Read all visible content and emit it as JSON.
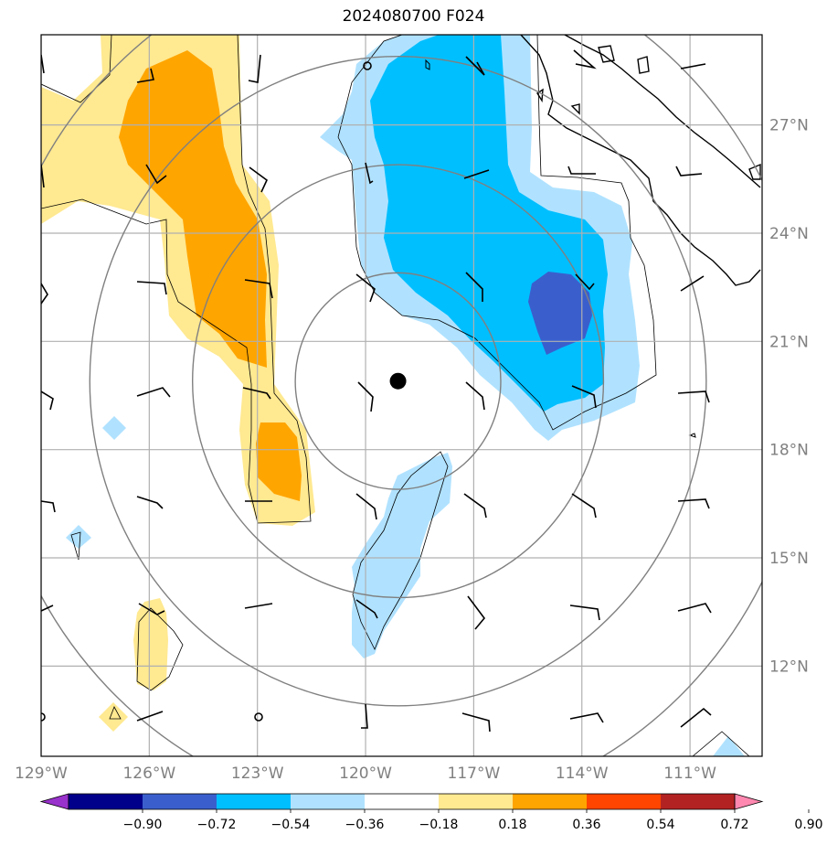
{
  "title": "2024080700 F024",
  "map": {
    "lon_range": [
      -129,
      -109
    ],
    "lat_range": [
      9.5,
      29.5
    ],
    "storm_center": {
      "lon": -119.1,
      "lat": 19.9
    },
    "range_rings_deg": [
      3,
      6,
      9,
      12
    ],
    "lon_ticks": [
      {
        "lon": -129,
        "label": "129°W"
      },
      {
        "lon": -126,
        "label": "126°W"
      },
      {
        "lon": -123,
        "label": "123°W"
      },
      {
        "lon": -120,
        "label": "120°W"
      },
      {
        "lon": -117,
        "label": "117°W"
      },
      {
        "lon": -114,
        "label": "114°W"
      },
      {
        "lon": -111,
        "label": "111°W"
      }
    ],
    "lat_ticks": [
      {
        "lat": 12,
        "label": "12°N"
      },
      {
        "lat": 15,
        "label": "15°N"
      },
      {
        "lat": 18,
        "label": "18°N"
      },
      {
        "lat": 21,
        "label": "21°N"
      },
      {
        "lat": 24,
        "label": "24°N"
      },
      {
        "lat": 27,
        "label": "27°N"
      }
    ]
  },
  "colorbar": {
    "levels": [
      "−0.90",
      "−0.72",
      "−0.54",
      "−0.36",
      "−0.18",
      "0.18",
      "0.36",
      "0.54",
      "0.72",
      "0.90"
    ],
    "colors": [
      "#9932cc",
      "#00008b",
      "#3a5fcd",
      "#00bfff",
      "#b0e2ff",
      "#ffffff",
      "#ffe991",
      "#ffa500",
      "#ff4500",
      "#b22222",
      "#ff88b0"
    ]
  },
  "fill_colors": {
    "light_yellow": "#ffe991",
    "orange": "#ffa500",
    "light_blue": "#b0e2ff",
    "blue": "#00bfff",
    "dark_blue": "#3a5fcd",
    "grid": "#b0b0b0",
    "ring": "#808080",
    "tick_label": "#808080"
  }
}
